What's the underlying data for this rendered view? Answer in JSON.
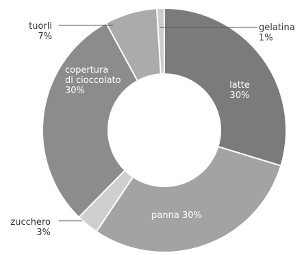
{
  "chart_data": {
    "type": "pie",
    "variant": "donut",
    "title": "",
    "start": "top",
    "direction": "clockwise",
    "slices": [
      {
        "label_lines": [
          "latte",
          "30%"
        ],
        "value": 30,
        "color": "#7b7b7b",
        "label_position": "inside"
      },
      {
        "label_lines": [
          "panna  30%"
        ],
        "value": 30,
        "color": "#a3a3a3",
        "label_position": "inside"
      },
      {
        "label_lines": [
          "zucchero",
          "3%"
        ],
        "value": 3,
        "color": "#cfcfcf",
        "label_position": "outside-left"
      },
      {
        "label_lines": [
          "copertura",
          "di cioccolato",
          "30%"
        ],
        "value": 30,
        "color": "#8c8c8c",
        "label_position": "inside"
      },
      {
        "label_lines": [
          "tuorli",
          "7%"
        ],
        "value": 7,
        "color": "#ababab",
        "label_position": "outside-left"
      },
      {
        "label_lines": [
          "gelatina",
          "1%"
        ],
        "value": 1,
        "color": "#cccccc",
        "label_position": "outside-right"
      }
    ]
  }
}
